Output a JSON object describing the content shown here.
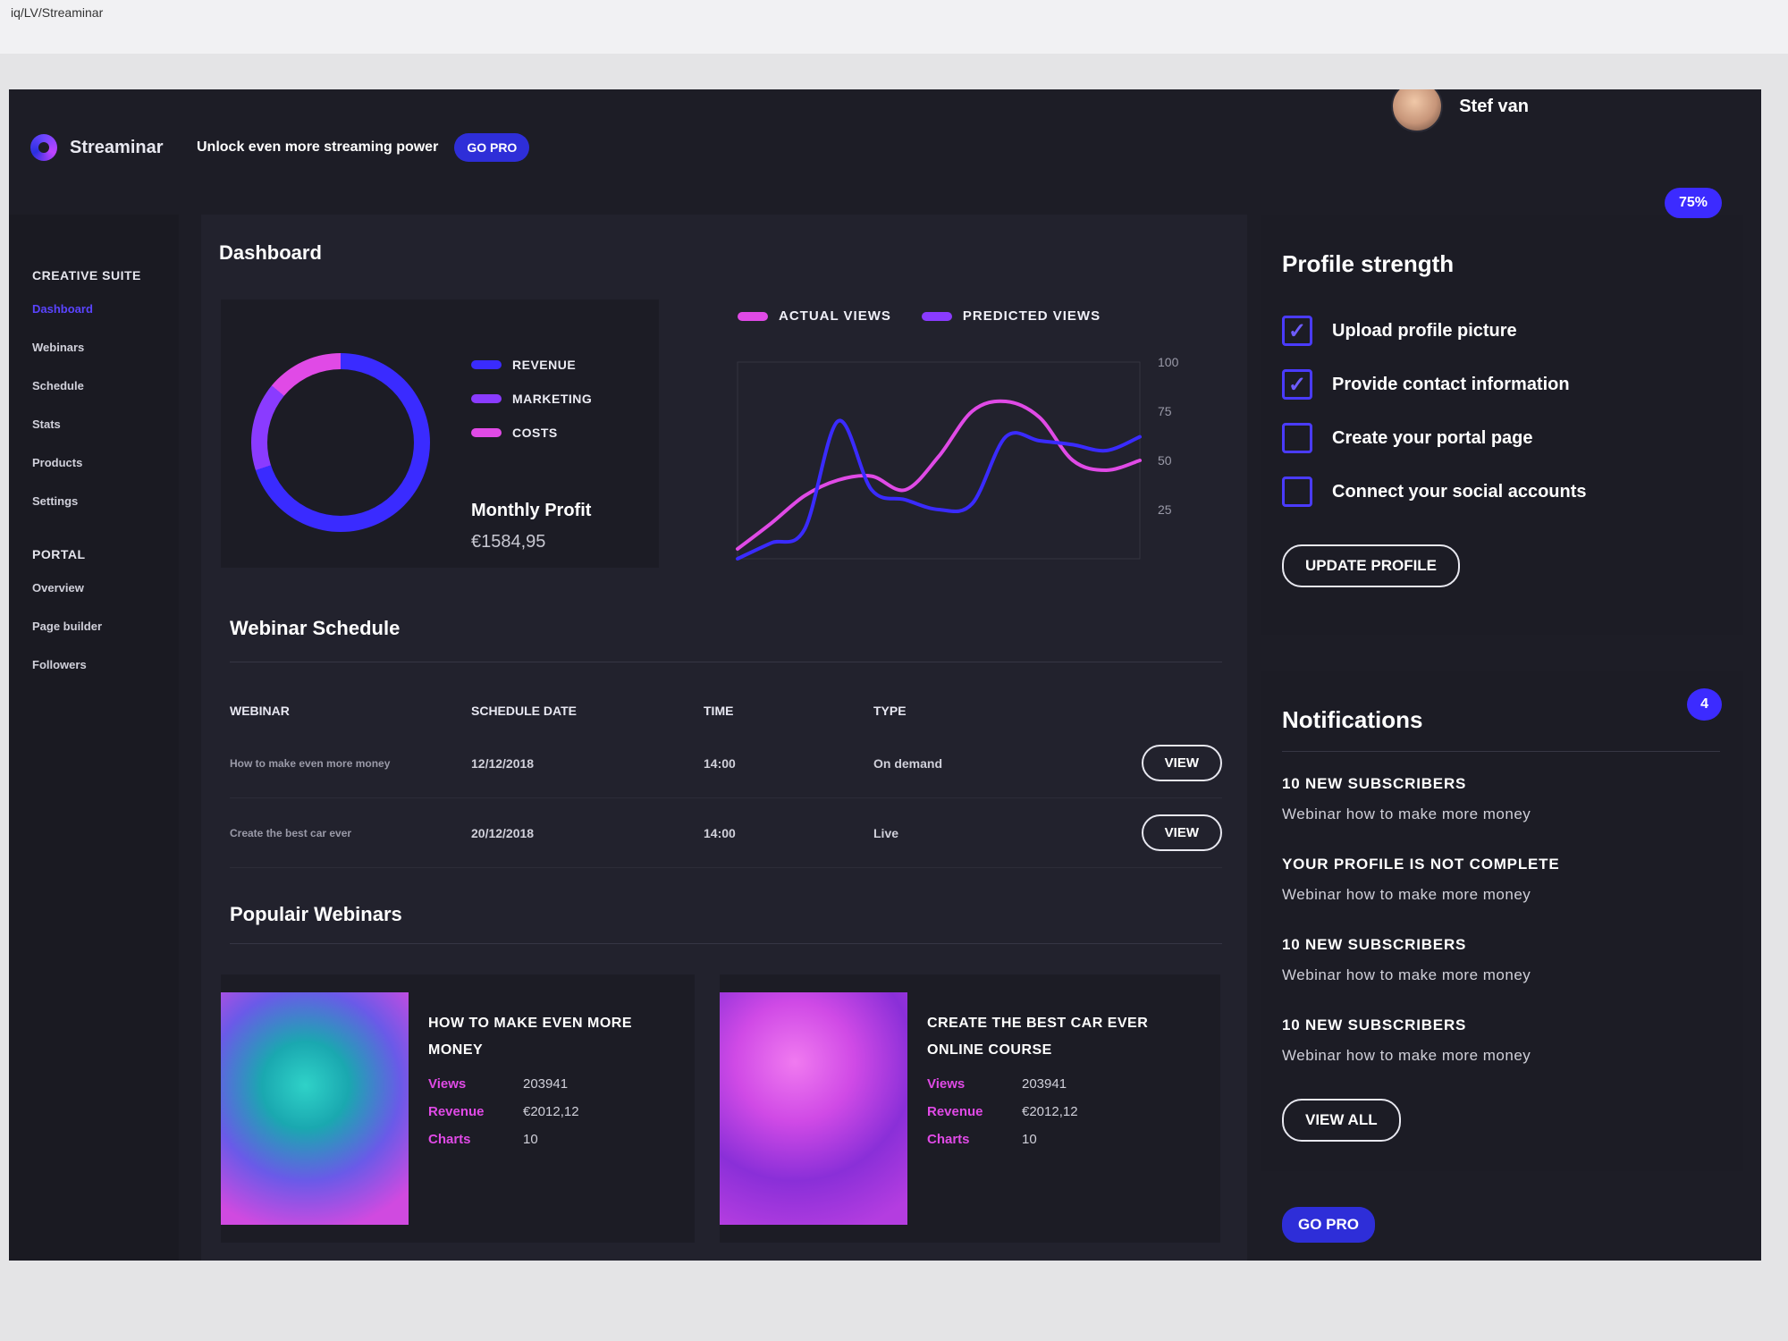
{
  "browser": {
    "url": "iq/LV/Streaminar"
  },
  "brand": {
    "name": "Streaminar"
  },
  "promo": {
    "text": "Unlock even more streaming power",
    "button": "GO PRO"
  },
  "user": {
    "name": "Stef van"
  },
  "sidebar": {
    "creative_title": "CREATIVE SUITE",
    "creative_items": [
      "Dashboard",
      "Webinars",
      "Schedule",
      "Stats",
      "Products",
      "Settings"
    ],
    "portal_title": "PORTAL",
    "portal_items": [
      "Overview",
      "Page builder",
      "Followers"
    ]
  },
  "dashboard": {
    "title": "Dashboard",
    "legend": [
      "REVENUE",
      "MARKETING",
      "COSTS"
    ],
    "profit_label": "Monthly Profit",
    "profit_value": "€1584,95",
    "donut": {
      "revenue": 0.7,
      "marketing": 0.16,
      "costs": 0.14
    }
  },
  "colors": {
    "revenue": "#3a2bff",
    "marketing": "#8a3bff",
    "costs": "#e04ae6",
    "accent": "#3c2bff"
  },
  "chart_data": {
    "type": "line",
    "y_ticks": [
      "100",
      "75",
      "50",
      "25"
    ],
    "ylim": [
      0,
      100
    ],
    "x": [
      0,
      1,
      2,
      3,
      4,
      5,
      6,
      7,
      8,
      9,
      10,
      11,
      12
    ],
    "series": [
      {
        "name": "ACTUAL VIEWS",
        "values": [
          5,
          18,
          32,
          40,
          42,
          35,
          52,
          75,
          80,
          72,
          50,
          45,
          50
        ]
      },
      {
        "name": "PREDICTED VIEWS",
        "values": [
          0,
          8,
          15,
          70,
          35,
          30,
          25,
          28,
          62,
          60,
          58,
          55,
          62
        ]
      }
    ]
  },
  "schedule": {
    "title": "Webinar Schedule",
    "headers": [
      "WEBINAR",
      "SCHEDULE DATE",
      "TIME",
      "TYPE"
    ],
    "rows": [
      {
        "webinar": "How to make even more money",
        "date": "12/12/2018",
        "time": "14:00",
        "type": "On demand",
        "action": "VIEW"
      },
      {
        "webinar": "Create the best car ever",
        "date": "20/12/2018",
        "time": "14:00",
        "type": "Live",
        "action": "VIEW"
      }
    ]
  },
  "popular": {
    "title": "Populair Webinars",
    "cards": [
      {
        "name": "HOW TO MAKE EVEN MORE MONEY",
        "views_label": "Views",
        "views": "203941",
        "revenue_label": "Revenue",
        "revenue": "€2012,12",
        "charts_label": "Charts",
        "charts": "10"
      },
      {
        "name": "CREATE THE BEST CAR EVER ONLINE COURSE",
        "views_label": "Views",
        "views": "203941",
        "revenue_label": "Revenue",
        "revenue": "€2012,12",
        "charts_label": "Charts",
        "charts": "10"
      }
    ]
  },
  "profile": {
    "title": "Profile strength",
    "badge": "75%",
    "items": [
      {
        "label": "Upload profile picture",
        "checked": true
      },
      {
        "label": "Provide contact information",
        "checked": true
      },
      {
        "label": "Create your portal page",
        "checked": false
      },
      {
        "label": "Connect your social accounts",
        "checked": false
      }
    ],
    "button": "UPDATE PROFILE"
  },
  "notifications": {
    "title": "Notifications",
    "badge": "4",
    "items": [
      {
        "title": "10 NEW SUBSCRIBERS",
        "sub": "Webinar how to make more money"
      },
      {
        "title": "YOUR PROFILE IS NOT COMPLETE",
        "sub": "Webinar how to make more money"
      },
      {
        "title": "10 NEW SUBSCRIBERS",
        "sub": "Webinar how to make more money"
      },
      {
        "title": "10 NEW SUBSCRIBERS",
        "sub": "Webinar how to make more money"
      }
    ],
    "button": "VIEW ALL"
  },
  "go_pro_bottom": "GO PRO"
}
